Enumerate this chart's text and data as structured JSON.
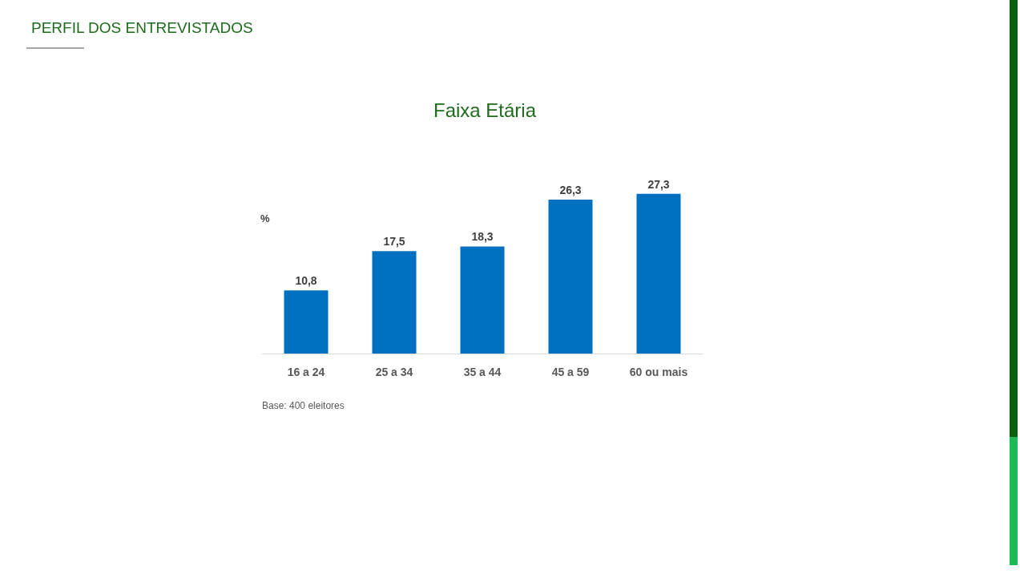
{
  "chart_data": {
    "type": "bar",
    "title": "PERFIL DOS ENTREVISTADOS",
    "subtitle": "Faixa Etária",
    "ylabel": "%",
    "categories": [
      "16 a 24",
      "25 a 34",
      "35 a 44",
      "45 a 59",
      "60 ou mais"
    ],
    "values": [
      10.8,
      17.5,
      18.3,
      26.3,
      27.3
    ],
    "color": "#0070c0",
    "value_labels": [
      "10,8",
      "17,5",
      "18,3",
      "26,3",
      "27,3"
    ],
    "annotations": [
      "Base: 400 eleitores"
    ]
  }
}
